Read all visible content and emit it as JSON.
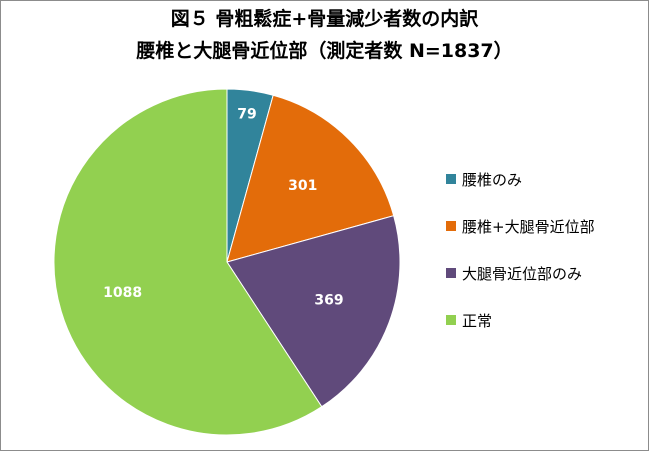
{
  "chart_data": {
    "type": "pie",
    "title_lines": [
      "図５ 骨粗鬆症+骨量減少者数の内訳",
      "腰椎と大腿骨近位部（測定者数 N=1837）"
    ],
    "categories": [
      "腰椎のみ",
      "腰椎+大腿骨近位部",
      "大腿骨近位部のみ",
      "正常"
    ],
    "values": [
      79,
      301,
      369,
      1088
    ],
    "colors": [
      "#31849b",
      "#e36c0a",
      "#604a7b",
      "#92d050"
    ],
    "data_labels": [
      "79",
      "301",
      "369",
      "1088"
    ],
    "legend_position": "right"
  }
}
